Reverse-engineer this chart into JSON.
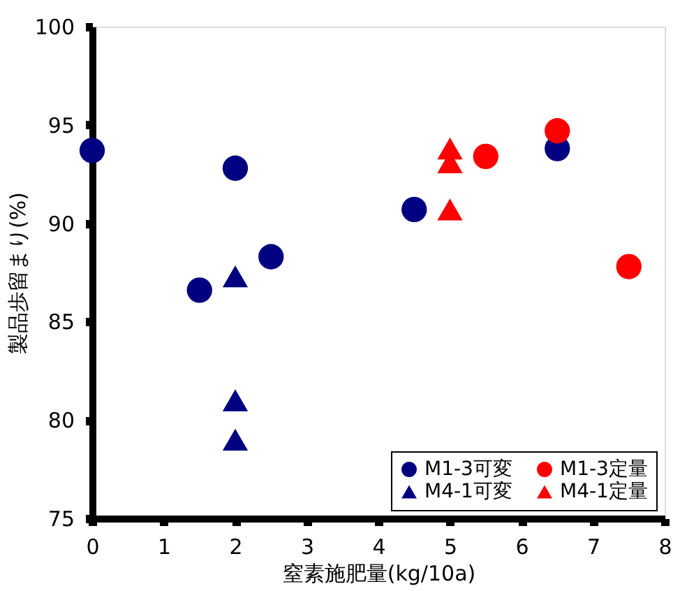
{
  "chart_data": {
    "type": "scatter",
    "xlabel": "窒素施肥量(kg/10a)",
    "ylabel": "製品歩留まり(%)",
    "xlim": [
      0,
      8
    ],
    "xticks": [
      0,
      1,
      2,
      3,
      4,
      5,
      6,
      7,
      8
    ],
    "ylim": [
      75,
      100
    ],
    "yticks": [
      75,
      80,
      85,
      90,
      95,
      100
    ],
    "grid": false,
    "legend": "bottom right",
    "series": [
      {
        "name": "M1-3可変",
        "color": "#000080",
        "marker": "circle",
        "x": [
          0,
          1.5,
          2,
          2.5,
          4.5,
          6.5
        ],
        "values": [
          93.7,
          86.6,
          92.8,
          88.3,
          90.7,
          93.8
        ]
      },
      {
        "name": "M1-3定量",
        "color": "#ff0000",
        "marker": "circle",
        "x": [
          5.5,
          6.5,
          7.5
        ],
        "values": [
          93.4,
          94.7,
          87.8
        ]
      },
      {
        "name": "M4-1可変",
        "color": "#000080",
        "marker": "triangle",
        "x": [
          2,
          2,
          2
        ],
        "values": [
          87.3,
          81.0,
          79.0
        ]
      },
      {
        "name": "M4-1定量",
        "color": "#ff0000",
        "marker": "triangle",
        "x": [
          5,
          5,
          5
        ],
        "values": [
          93.8,
          93.1,
          90.7
        ]
      }
    ]
  }
}
